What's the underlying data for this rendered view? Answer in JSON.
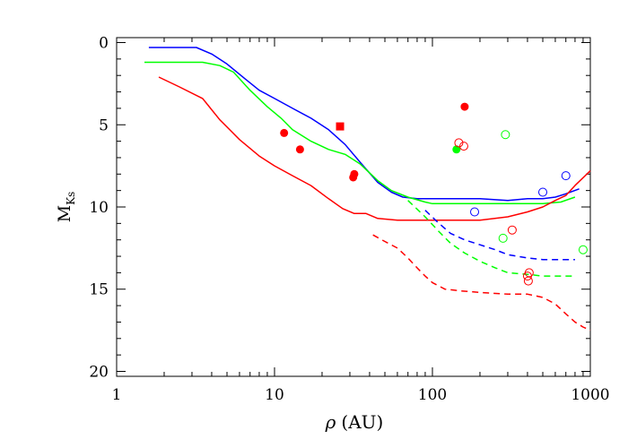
{
  "chart_data": {
    "type": "line",
    "title": "",
    "xlabel": "ρ (AU)",
    "xlabel_parts": {
      "symbol": "ρ",
      "unit": "(AU)"
    },
    "ylabel": "M_Ks",
    "ylabel_parts": {
      "main": "M",
      "sub": "Ks"
    },
    "x_scale": "log",
    "xlim": [
      1,
      1000
    ],
    "ylim": [
      20.3,
      -0.3
    ],
    "y_inverted": true,
    "grid": false,
    "x_ticks": [
      {
        "value": 1,
        "label": "1"
      },
      {
        "value": 10,
        "label": "10"
      },
      {
        "value": 100,
        "label": "100"
      },
      {
        "value": 1000,
        "label": "1000"
      }
    ],
    "y_ticks": [
      {
        "value": 0,
        "label": "0"
      },
      {
        "value": 5,
        "label": "5"
      },
      {
        "value": 10,
        "label": "10"
      },
      {
        "value": 15,
        "label": "15"
      },
      {
        "value": 20,
        "label": "20"
      }
    ],
    "series": [
      {
        "color": "#0000ff",
        "dash": "solid",
        "points": [
          [
            1.6,
            0.3
          ],
          [
            3.2,
            0.3
          ],
          [
            4.0,
            0.7
          ],
          [
            5.0,
            1.3
          ],
          [
            6.5,
            2.2
          ],
          [
            8.0,
            2.9
          ],
          [
            10,
            3.4
          ],
          [
            13,
            4.0
          ],
          [
            17,
            4.6
          ],
          [
            22,
            5.3
          ],
          [
            28,
            6.2
          ],
          [
            35,
            7.3
          ],
          [
            45,
            8.5
          ],
          [
            55,
            9.1
          ],
          [
            65,
            9.4
          ],
          [
            80,
            9.5
          ],
          [
            100,
            9.5
          ],
          [
            140,
            9.5
          ],
          [
            200,
            9.5
          ],
          [
            300,
            9.6
          ],
          [
            400,
            9.5
          ],
          [
            500,
            9.5
          ],
          [
            600,
            9.4
          ],
          [
            700,
            9.2
          ],
          [
            850,
            8.9
          ]
        ]
      },
      {
        "color": "#00ff00",
        "dash": "solid",
        "points": [
          [
            1.5,
            1.2
          ],
          [
            3.5,
            1.2
          ],
          [
            4.5,
            1.4
          ],
          [
            5.5,
            1.8
          ],
          [
            7.0,
            2.9
          ],
          [
            9.0,
            3.9
          ],
          [
            11,
            4.6
          ],
          [
            13,
            5.3
          ],
          [
            17,
            6.0
          ],
          [
            22,
            6.5
          ],
          [
            28,
            6.8
          ],
          [
            35,
            7.4
          ],
          [
            45,
            8.4
          ],
          [
            55,
            9.0
          ],
          [
            70,
            9.4
          ],
          [
            90,
            9.7
          ],
          [
            100,
            9.8
          ],
          [
            150,
            9.8
          ],
          [
            200,
            9.8
          ],
          [
            300,
            9.8
          ],
          [
            400,
            9.8
          ],
          [
            500,
            9.8
          ],
          [
            650,
            9.7
          ],
          [
            800,
            9.4
          ]
        ]
      },
      {
        "color": "#ff0000",
        "dash": "solid",
        "points": [
          [
            1.85,
            2.1
          ],
          [
            2.5,
            2.7
          ],
          [
            3.5,
            3.4
          ],
          [
            4.5,
            4.7
          ],
          [
            6,
            5.9
          ],
          [
            8,
            6.9
          ],
          [
            10,
            7.5
          ],
          [
            13,
            8.1
          ],
          [
            17,
            8.7
          ],
          [
            22,
            9.5
          ],
          [
            27,
            10.1
          ],
          [
            32,
            10.4
          ],
          [
            38,
            10.4
          ],
          [
            45,
            10.7
          ],
          [
            60,
            10.8
          ],
          [
            80,
            10.8
          ],
          [
            100,
            10.8
          ],
          [
            150,
            10.8
          ],
          [
            200,
            10.8
          ],
          [
            300,
            10.6
          ],
          [
            400,
            10.3
          ],
          [
            500,
            10.0
          ],
          [
            600,
            9.6
          ],
          [
            700,
            9.3
          ],
          [
            800,
            8.7
          ],
          [
            1000,
            7.8
          ]
        ]
      },
      {
        "color": "#0000ff",
        "dash": "dashed",
        "points": [
          [
            90,
            10.2
          ],
          [
            110,
            11.0
          ],
          [
            130,
            11.6
          ],
          [
            160,
            12.0
          ],
          [
            200,
            12.3
          ],
          [
            250,
            12.6
          ],
          [
            300,
            12.9
          ],
          [
            400,
            13.1
          ],
          [
            500,
            13.2
          ],
          [
            600,
            13.2
          ],
          [
            700,
            13.2
          ],
          [
            800,
            13.2
          ]
        ]
      },
      {
        "color": "#00ff00",
        "dash": "dashed",
        "points": [
          [
            70,
            9.6
          ],
          [
            90,
            10.6
          ],
          [
            110,
            11.5
          ],
          [
            130,
            12.2
          ],
          [
            160,
            12.8
          ],
          [
            200,
            13.3
          ],
          [
            250,
            13.7
          ],
          [
            300,
            14.0
          ],
          [
            400,
            14.1
          ],
          [
            500,
            14.2
          ],
          [
            600,
            14.2
          ],
          [
            700,
            14.2
          ],
          [
            800,
            14.2
          ]
        ]
      },
      {
        "color": "#ff0000",
        "dash": "dashed",
        "points": [
          [
            42,
            11.7
          ],
          [
            50,
            12.1
          ],
          [
            60,
            12.5
          ],
          [
            70,
            13.1
          ],
          [
            80,
            13.7
          ],
          [
            90,
            14.2
          ],
          [
            100,
            14.6
          ],
          [
            120,
            15.0
          ],
          [
            150,
            15.1
          ],
          [
            200,
            15.2
          ],
          [
            300,
            15.3
          ],
          [
            400,
            15.3
          ],
          [
            500,
            15.5
          ],
          [
            600,
            15.9
          ],
          [
            700,
            16.5
          ],
          [
            800,
            17.0
          ],
          [
            900,
            17.3
          ],
          [
            1000,
            17.5
          ]
        ]
      }
    ],
    "points": [
      {
        "x": 11.5,
        "y": 5.5,
        "color": "#ff0000",
        "marker": "filled-circle"
      },
      {
        "x": 14.5,
        "y": 6.5,
        "color": "#ff0000",
        "marker": "filled-circle"
      },
      {
        "x": 26,
        "y": 5.1,
        "color": "#ff0000",
        "marker": "filled-square"
      },
      {
        "x": 31.5,
        "y": 8.2,
        "color": "#ff0000",
        "marker": "filled-circle"
      },
      {
        "x": 32,
        "y": 8.0,
        "color": "#ff0000",
        "marker": "filled-circle"
      },
      {
        "x": 160,
        "y": 3.9,
        "color": "#ff0000",
        "marker": "filled-circle"
      },
      {
        "x": 142,
        "y": 6.5,
        "color": "#00ff00",
        "marker": "filled-circle"
      },
      {
        "x": 147,
        "y": 6.1,
        "color": "#ff0000",
        "marker": "open-circle"
      },
      {
        "x": 158,
        "y": 6.3,
        "color": "#ff0000",
        "marker": "open-circle"
      },
      {
        "x": 185,
        "y": 10.3,
        "color": "#0000ff",
        "marker": "open-circle"
      },
      {
        "x": 290,
        "y": 5.6,
        "color": "#00ff00",
        "marker": "open-circle"
      },
      {
        "x": 280,
        "y": 11.9,
        "color": "#00ff00",
        "marker": "open-circle"
      },
      {
        "x": 320,
        "y": 11.4,
        "color": "#ff0000",
        "marker": "open-circle"
      },
      {
        "x": 500,
        "y": 9.1,
        "color": "#0000ff",
        "marker": "open-circle"
      },
      {
        "x": 700,
        "y": 8.1,
        "color": "#0000ff",
        "marker": "open-circle"
      },
      {
        "x": 400,
        "y": 14.2,
        "color": "#ff0000",
        "marker": "open-circle"
      },
      {
        "x": 410,
        "y": 14.0,
        "color": "#ff0000",
        "marker": "open-circle"
      },
      {
        "x": 405,
        "y": 14.5,
        "color": "#ff0000",
        "marker": "open-circle"
      },
      {
        "x": 900,
        "y": 12.6,
        "color": "#00ff00",
        "marker": "open-circle"
      }
    ]
  }
}
